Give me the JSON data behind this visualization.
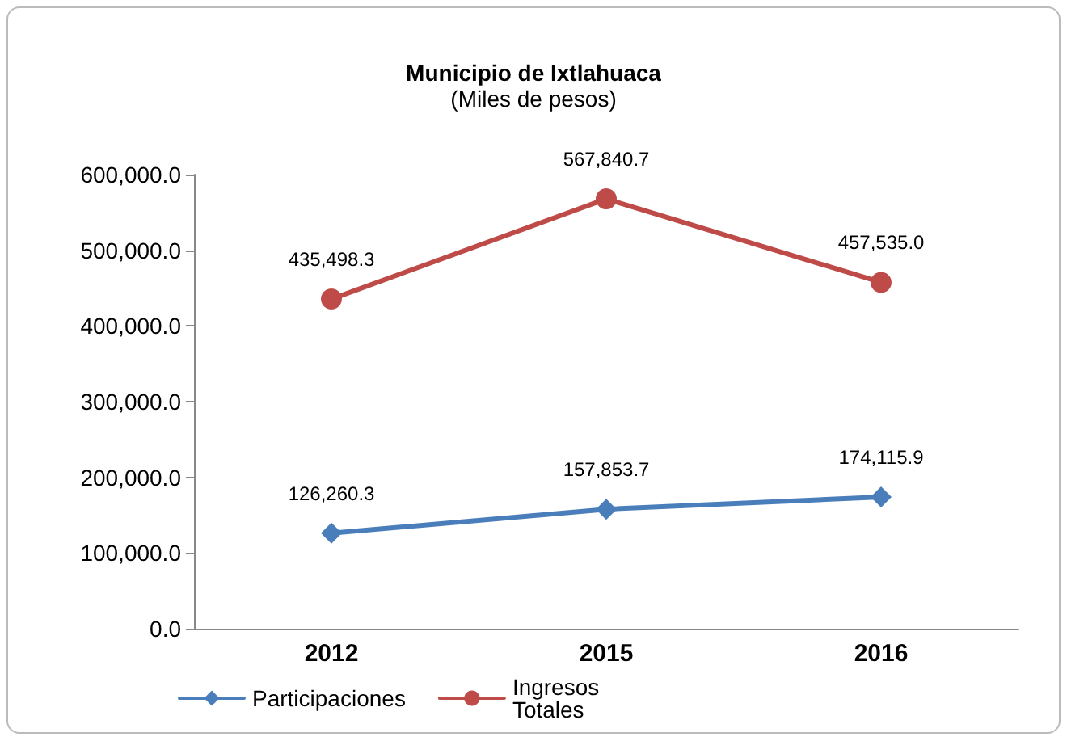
{
  "chart_data": {
    "type": "line",
    "title": "Municipio de Ixtlahuaca",
    "subtitle": "(Miles de pesos)",
    "categories": [
      "2012",
      "2015",
      "2016"
    ],
    "series": [
      {
        "name": "Participaciones",
        "color": "#4a7ebb",
        "marker": "diamond",
        "values": [
          126260.3,
          157853.7,
          174115.9
        ],
        "value_labels": [
          "126,260.3",
          "157,853.7",
          "174,115.9"
        ]
      },
      {
        "name": "Ingresos Totales",
        "color": "#be4b48",
        "marker": "circle",
        "values": [
          435498.3,
          567840.7,
          457535.0
        ],
        "value_labels": [
          "435,498.3",
          "567,840.7",
          "457,535.0"
        ]
      }
    ],
    "ylim": [
      0,
      600000
    ],
    "yticks": [
      {
        "value": 0,
        "label": "0.0"
      },
      {
        "value": 100000,
        "label": "100,000.0"
      },
      {
        "value": 200000,
        "label": "200,000.0"
      },
      {
        "value": 300000,
        "label": "300,000.0"
      },
      {
        "value": 400000,
        "label": "400,000.0"
      },
      {
        "value": 500000,
        "label": "500,000.0"
      },
      {
        "value": 600000,
        "label": "600,000.0"
      }
    ],
    "grid": false,
    "legend": "bottom left",
    "line_style": "solid"
  }
}
